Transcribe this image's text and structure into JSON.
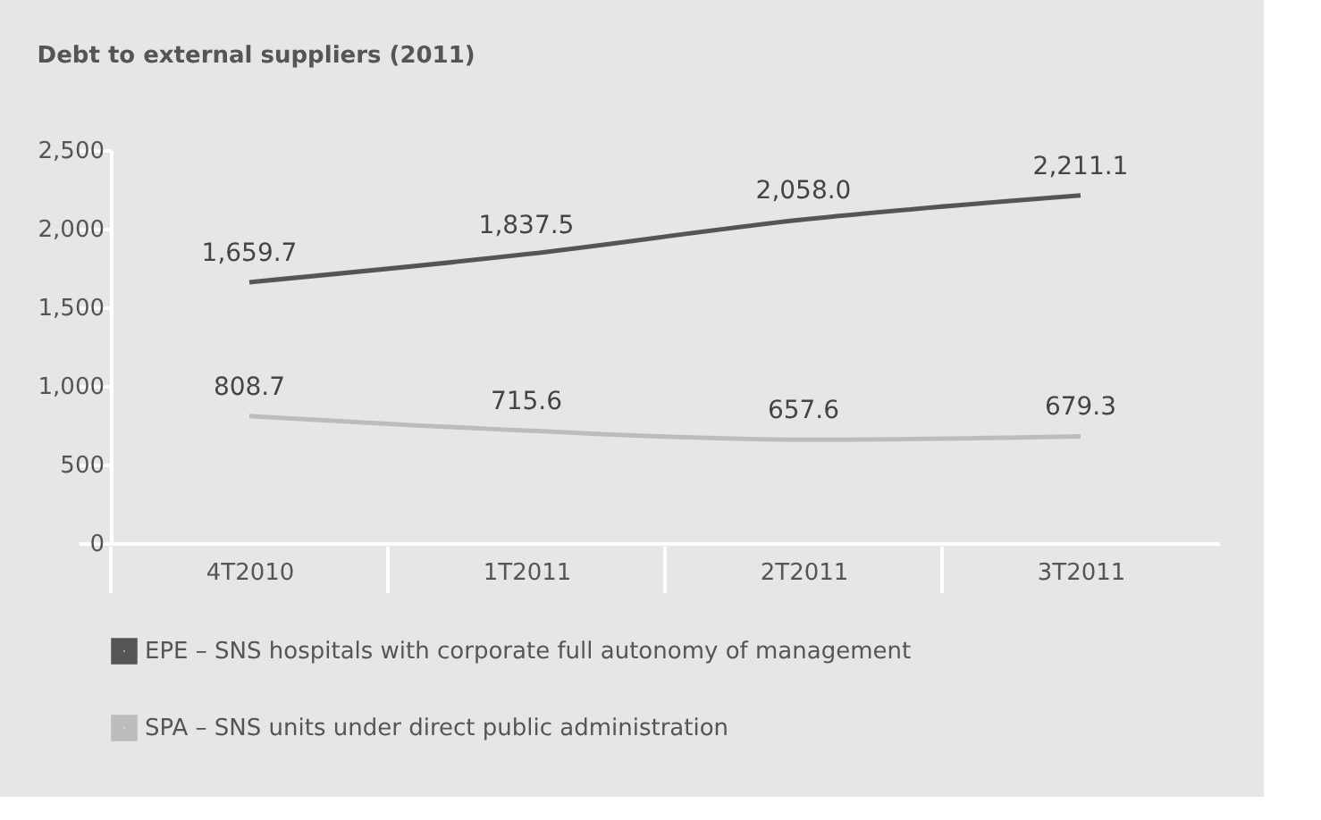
{
  "chart_data": {
    "type": "line",
    "title": "Debt to external suppliers (2011)",
    "categories": [
      "4T2010",
      "1T2011",
      "2T2011",
      "3T2011"
    ],
    "series": [
      {
        "name": "EPE – SNS hospitals with corporate full autonomy of management",
        "color": "#555558",
        "values": [
          1659.7,
          1837.5,
          2058.0,
          2211.1
        ],
        "value_labels": [
          "1,659.7",
          "1,837.5",
          "2,058.0",
          "2,211.1"
        ]
      },
      {
        "name": "SPA – SNS units under direct public administration",
        "color": "#bcbcbf",
        "values": [
          808.7,
          715.6,
          657.6,
          679.3
        ],
        "value_labels": [
          "808.7",
          "715.6",
          "657.6",
          "679.3"
        ]
      }
    ],
    "ylim": [
      0,
      2500
    ],
    "yticks": [
      0,
      500,
      {
        "value": 1000,
        "label": "1,000"
      },
      {
        "value": 1500,
        "label": "1,500"
      },
      {
        "value": 2000,
        "label": "2,000"
      },
      {
        "value": 2500,
        "label": "2,500"
      }
    ],
    "legend": "bottom",
    "grid": false,
    "marker": "none",
    "line_style": "solid"
  }
}
